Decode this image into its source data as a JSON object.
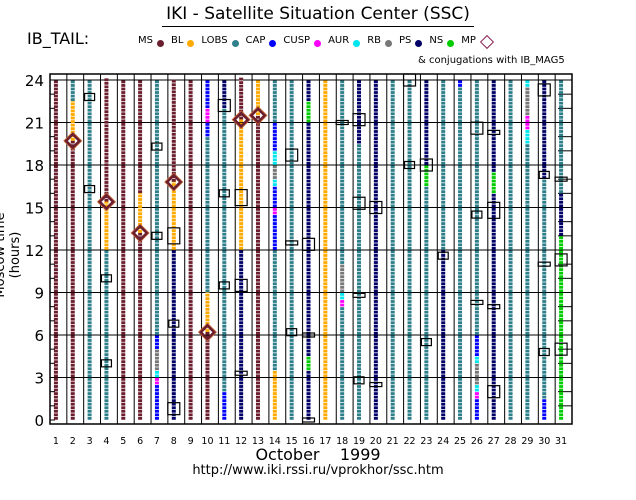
{
  "title": "IKI - Satellite Situation Center (SSC)",
  "satellite_label": "IB_TAIL:",
  "conjugations_note": "& conjugations with IB_MAG5",
  "url": "http://www.iki.rssi.ru/vprokhor/ssc.htm",
  "legend": [
    {
      "code": "MS",
      "label": "MS",
      "color": "#6b1f2e"
    },
    {
      "code": "BL",
      "label": "BL",
      "color": "#ffaa00"
    },
    {
      "code": "LOBS",
      "label": "LOBS",
      "color": "#2f7f8a"
    },
    {
      "code": "CAP",
      "label": "CAP",
      "color": "#0000ff"
    },
    {
      "code": "CUSP",
      "label": "CUSP",
      "color": "#ff00ff"
    },
    {
      "code": "AUR",
      "label": "AUR",
      "color": "#00e5ee"
    },
    {
      "code": "RB",
      "label": "RB",
      "color": "#777777"
    },
    {
      "code": "PS",
      "label": "PS",
      "color": "#000066"
    },
    {
      "code": "NS",
      "label": "NS",
      "color": "#00cc00"
    },
    {
      "code": "MP",
      "label": "MP",
      "color": "#8b2252",
      "marker": "diamond"
    }
  ],
  "chart_data": {
    "type": "scatter",
    "title": "IKI - Satellite Situation Center (SSC)",
    "xlabel": "October    1999",
    "ylabel": "Moscow time (hours)",
    "x_ticks": [
      "1",
      "2",
      "3",
      "4",
      "5",
      "6",
      "7",
      "8",
      "9",
      "10",
      "11",
      "12",
      "13",
      "14",
      "15",
      "16",
      "17",
      "18",
      "19",
      "20",
      "21",
      "22",
      "23",
      "24",
      "25",
      "26",
      "27",
      "28",
      "29",
      "30",
      "31"
    ],
    "y_ticks": [
      "0",
      "3",
      "6",
      "9",
      "12",
      "15",
      "18",
      "21",
      "24"
    ],
    "ylim": [
      0,
      24
    ],
    "grid": true,
    "days": [
      {
        "day": 1,
        "segments": [
          [
            0,
            24,
            "MS"
          ]
        ],
        "mp": [],
        "conj": []
      },
      {
        "day": 2,
        "segments": [
          [
            0,
            19.7,
            "MS"
          ],
          [
            19.7,
            22.5,
            "BL"
          ],
          [
            22.5,
            24,
            "LOBS"
          ]
        ],
        "mp": [
          19.7
        ],
        "conj": []
      },
      {
        "day": 3,
        "segments": [
          [
            0,
            24,
            "LOBS"
          ]
        ],
        "mp": [],
        "conj": [
          [
            22.8,
            "s"
          ],
          [
            16.3,
            "s"
          ]
        ]
      },
      {
        "day": 4,
        "segments": [
          [
            0,
            12,
            "LOBS"
          ],
          [
            12,
            15.4,
            "BL"
          ],
          [
            15.4,
            24,
            "MS"
          ]
        ],
        "mp": [
          15.4
        ],
        "conj": [
          [
            10,
            "s"
          ],
          [
            4,
            "s"
          ]
        ]
      },
      {
        "day": 5,
        "segments": [
          [
            0,
            24,
            "MS"
          ]
        ],
        "mp": [],
        "conj": []
      },
      {
        "day": 6,
        "segments": [
          [
            0,
            13.2,
            "MS"
          ],
          [
            13.2,
            16,
            "BL"
          ],
          [
            16,
            24,
            "MS"
          ]
        ],
        "mp": [
          13.2
        ],
        "conj": []
      },
      {
        "day": 7,
        "segments": [
          [
            0,
            2.5,
            "CAP"
          ],
          [
            2.5,
            3,
            "CUSP"
          ],
          [
            3,
            3.5,
            "AUR"
          ],
          [
            3.5,
            5,
            "RB"
          ],
          [
            5,
            6,
            "CAP"
          ],
          [
            6,
            24,
            "LOBS"
          ]
        ],
        "mp": [],
        "conj": [
          [
            13,
            "s"
          ],
          [
            19.3,
            "s"
          ]
        ]
      },
      {
        "day": 8,
        "segments": [
          [
            0,
            12,
            "PS"
          ],
          [
            12,
            16.8,
            "BL"
          ],
          [
            16.8,
            24,
            "MS"
          ]
        ],
        "mp": [
          16.8
        ],
        "conj": [
          [
            0.8,
            "m"
          ],
          [
            6.8,
            "s"
          ],
          [
            13,
            "l"
          ]
        ]
      },
      {
        "day": 9,
        "segments": [
          [
            0,
            24,
            "MS"
          ]
        ],
        "mp": [],
        "conj": []
      },
      {
        "day": 10,
        "segments": [
          [
            0,
            6.2,
            "MS"
          ],
          [
            6.2,
            9,
            "BL"
          ],
          [
            9,
            20,
            "LOBS"
          ],
          [
            20,
            21,
            "CAP"
          ],
          [
            21,
            22,
            "CUSP"
          ],
          [
            22,
            24,
            "CAP"
          ]
        ],
        "mp": [
          6.2
        ],
        "conj": []
      },
      {
        "day": 11,
        "segments": [
          [
            0,
            2,
            "CAP"
          ],
          [
            2,
            22,
            "LOBS"
          ],
          [
            22,
            24,
            "PS"
          ]
        ],
        "mp": [],
        "conj": [
          [
            9.5,
            "s"
          ],
          [
            16,
            "s"
          ],
          [
            22.2,
            "m"
          ]
        ]
      },
      {
        "day": 12,
        "segments": [
          [
            0,
            12,
            "PS"
          ],
          [
            12,
            21.2,
            "BL"
          ],
          [
            21.2,
            24,
            "MS"
          ]
        ],
        "mp": [
          21.2
        ],
        "conj": [
          [
            3.3,
            "t"
          ],
          [
            9.5,
            "m"
          ],
          [
            15.7,
            "l"
          ]
        ]
      },
      {
        "day": 13,
        "segments": [
          [
            0,
            21.5,
            "MS"
          ],
          [
            21.5,
            24,
            "BL"
          ]
        ],
        "mp": [
          21.5
        ],
        "conj": []
      },
      {
        "day": 14,
        "segments": [
          [
            0,
            3.5,
            "BL"
          ],
          [
            3.5,
            12,
            "LOBS"
          ],
          [
            12,
            14.5,
            "CAP"
          ],
          [
            14.5,
            15,
            "CUSP"
          ],
          [
            15,
            16.5,
            "CAP"
          ],
          [
            16.5,
            17,
            "AUR"
          ],
          [
            17,
            18,
            "RB"
          ],
          [
            18,
            19,
            "AUR"
          ],
          [
            19,
            21,
            "CAP"
          ],
          [
            21,
            24,
            "LOBS"
          ]
        ],
        "mp": [],
        "conj": []
      },
      {
        "day": 15,
        "segments": [
          [
            0,
            24,
            "LOBS"
          ]
        ],
        "mp": [],
        "conj": [
          [
            6.2,
            "s"
          ],
          [
            12.5,
            "t"
          ],
          [
            18.7,
            "m"
          ]
        ]
      },
      {
        "day": 16,
        "segments": [
          [
            0,
            3.5,
            "PS"
          ],
          [
            3.5,
            4.5,
            "NS"
          ],
          [
            4.5,
            12.5,
            "PS"
          ],
          [
            12.5,
            21,
            "PS"
          ],
          [
            21,
            22.5,
            "NS"
          ],
          [
            22.5,
            24,
            "PS"
          ]
        ],
        "mp": [],
        "conj": [
          [
            0,
            "t"
          ],
          [
            6,
            "t"
          ],
          [
            12.4,
            "m"
          ]
        ]
      },
      {
        "day": 17,
        "segments": [
          [
            0,
            18.5,
            "BL"
          ],
          [
            18.5,
            24,
            "BL"
          ]
        ],
        "mp": [],
        "conj": []
      },
      {
        "day": 18,
        "segments": [
          [
            0,
            8,
            "LOBS"
          ],
          [
            8,
            8.5,
            "CUSP"
          ],
          [
            8.5,
            9,
            "AUR"
          ],
          [
            9,
            11,
            "RB"
          ],
          [
            11,
            24,
            "LOBS"
          ]
        ],
        "mp": [],
        "conj": [
          [
            21,
            "t"
          ]
        ]
      },
      {
        "day": 19,
        "segments": [
          [
            0,
            19.5,
            "LOBS"
          ],
          [
            19.5,
            24,
            "PS"
          ]
        ],
        "mp": [],
        "conj": [
          [
            2.8,
            "s"
          ],
          [
            8.8,
            "t"
          ],
          [
            15.3,
            "m"
          ],
          [
            21.2,
            "m"
          ]
        ]
      },
      {
        "day": 20,
        "segments": [
          [
            0,
            24,
            "PS"
          ]
        ],
        "mp": [],
        "conj": [
          [
            2.5,
            "t"
          ],
          [
            15,
            "m"
          ]
        ]
      },
      {
        "day": 21,
        "segments": [
          [
            0,
            24,
            "LOBS"
          ]
        ],
        "mp": [],
        "conj": []
      },
      {
        "day": 22,
        "segments": [
          [
            0,
            24,
            "LOBS"
          ]
        ],
        "mp": [],
        "conj": [
          [
            18,
            "s"
          ],
          [
            24,
            "m"
          ]
        ]
      },
      {
        "day": 23,
        "segments": [
          [
            0,
            14,
            "LOBS"
          ],
          [
            14,
            16.5,
            "LOBS"
          ],
          [
            16.5,
            18,
            "NS"
          ],
          [
            18,
            24,
            "PS"
          ]
        ],
        "mp": [],
        "conj": [
          [
            5.5,
            "s"
          ],
          [
            18,
            "m"
          ]
        ]
      },
      {
        "day": 24,
        "segments": [
          [
            0,
            12,
            "PS"
          ],
          [
            12,
            24,
            "LOBS"
          ]
        ],
        "mp": [],
        "conj": [
          [
            11.6,
            "s"
          ]
        ]
      },
      {
        "day": 25,
        "segments": [
          [
            0,
            23.5,
            "LOBS"
          ],
          [
            23.5,
            24,
            "CAP"
          ]
        ],
        "mp": [],
        "conj": []
      },
      {
        "day": 26,
        "segments": [
          [
            0,
            1.5,
            "CAP"
          ],
          [
            1.5,
            2,
            "CUSP"
          ],
          [
            2,
            2.5,
            "AUR"
          ],
          [
            2.5,
            4,
            "RB"
          ],
          [
            4,
            4.5,
            "AUR"
          ],
          [
            4.5,
            6,
            "CAP"
          ],
          [
            6,
            24,
            "LOBS"
          ]
        ],
        "mp": [],
        "conj": [
          [
            8.3,
            "t"
          ],
          [
            14.5,
            "s"
          ],
          [
            20.6,
            "m"
          ]
        ]
      },
      {
        "day": 27,
        "segments": [
          [
            0,
            16,
            "PS"
          ],
          [
            16,
            17.5,
            "NS"
          ],
          [
            17.5,
            24,
            "PS"
          ]
        ],
        "mp": [],
        "conj": [
          [
            2,
            "m"
          ],
          [
            8,
            "t"
          ],
          [
            14.8,
            "l"
          ],
          [
            20.3,
            "t"
          ]
        ]
      },
      {
        "day": 28,
        "segments": [
          [
            0,
            13,
            "LOBS"
          ],
          [
            13,
            24,
            "LOBS"
          ]
        ],
        "mp": [],
        "conj": []
      },
      {
        "day": 29,
        "segments": [
          [
            0,
            19.5,
            "LOBS"
          ],
          [
            19.5,
            20.5,
            "AUR"
          ],
          [
            20.5,
            21.5,
            "CUSP"
          ],
          [
            21.5,
            23.5,
            "RB"
          ],
          [
            23.5,
            24,
            "AUR"
          ]
        ],
        "mp": [],
        "conj": []
      },
      {
        "day": 30,
        "segments": [
          [
            0,
            1.5,
            "CAP"
          ],
          [
            1.5,
            17,
            "LOBS"
          ],
          [
            17,
            24,
            "PS"
          ]
        ],
        "mp": [],
        "conj": [
          [
            4.8,
            "s"
          ],
          [
            11,
            "t"
          ],
          [
            17.3,
            "s"
          ],
          [
            23.3,
            "m"
          ]
        ]
      },
      {
        "day": 31,
        "segments": [
          [
            0,
            13,
            "NS"
          ],
          [
            13,
            16,
            "PS"
          ],
          [
            16,
            24,
            "LOBS"
          ]
        ],
        "mp": [],
        "conj": [
          [
            5,
            "m"
          ],
          [
            11.3,
            "m"
          ],
          [
            17,
            "t"
          ]
        ]
      }
    ]
  }
}
